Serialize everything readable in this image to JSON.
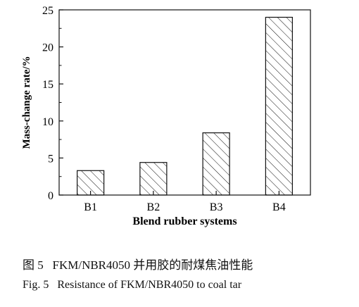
{
  "chart_data": {
    "type": "bar",
    "categories": [
      "B1",
      "B2",
      "B3",
      "B4"
    ],
    "values": [
      3.3,
      4.4,
      8.4,
      24.0
    ],
    "xlabel": "Blend rubber systems",
    "ylabel": "Mass-change rate/%",
    "ylim": [
      0,
      25
    ],
    "yticks": [
      0,
      5,
      10,
      15,
      20,
      25
    ],
    "bar_fill": "diagonal hatch",
    "grid": false,
    "legend": "none"
  },
  "caption": {
    "zh": "图 5   FKM/NBR4050 并用胶的耐煤焦油性能",
    "en": "Fig. 5   Resistance of FKM/NBR4050 to coal tar"
  },
  "colors": {
    "ink": "#111111",
    "background": "#ffffff"
  }
}
